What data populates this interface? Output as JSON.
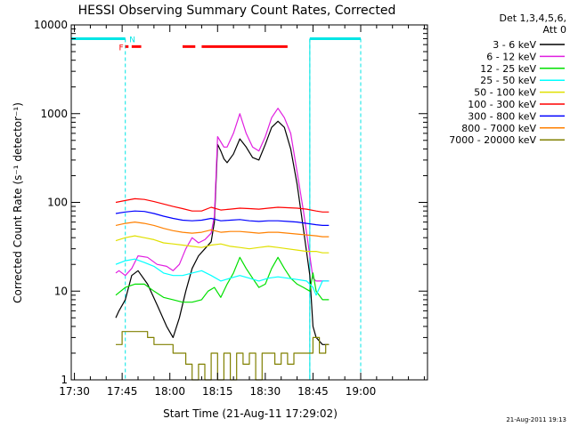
{
  "chart_data": {
    "type": "line",
    "title": "HESSI Observing Summary Count Rates, Corrected",
    "xlabel": "Start Time (21-Aug-11 17:29:02)",
    "ylabel": "Corrected Count Rate (s⁻¹ detector⁻¹)",
    "x_ticks": [
      "17:30",
      "17:45",
      "18:00",
      "18:15",
      "18:30",
      "18:45",
      "19:00"
    ],
    "x_tick_minutes": [
      30,
      45,
      60,
      75,
      90,
      105,
      120
    ],
    "xlim_minutes": [
      29,
      141
    ],
    "y_ticks": [
      "1",
      "10",
      "100",
      "1000",
      "10000"
    ],
    "ylim": [
      1,
      10000
    ],
    "y_scale": "log",
    "grid": false,
    "legend_position": "right-outside",
    "legend_header": [
      "Det 1,3,4,5,6,",
      "Att 0"
    ],
    "timestamp": "21-Aug-2011 19:13",
    "flag_labels": {
      "F": "F",
      "N": "N"
    },
    "bars": {
      "night_minutes": [
        [
          29,
          46
        ],
        [
          104,
          120
        ]
      ],
      "night_level": 7000,
      "night_dash_minutes": [
        46,
        104,
        120
      ],
      "night_solid_minutes": [
        29,
        104
      ],
      "flare_level": 5700,
      "flare_minutes": [
        [
          48,
          51
        ],
        [
          64,
          68
        ],
        [
          70,
          97
        ]
      ],
      "saa_level": 5700,
      "saa_minutes": [
        [
          46,
          47
        ]
      ]
    },
    "series": [
      {
        "name": "3 - 6 keV",
        "color": "#000000",
        "x": [
          43,
          44,
          46,
          48,
          50,
          53,
          56,
          59,
          61,
          63,
          65,
          67,
          69,
          71,
          73,
          74,
          75,
          76,
          77,
          78,
          80,
          82,
          84,
          86,
          88,
          90,
          92,
          94,
          96,
          98,
          100,
          102,
          104,
          105,
          106,
          108,
          110
        ],
        "y": [
          5,
          6,
          8,
          15,
          17,
          12,
          7,
          4,
          3,
          5,
          10,
          18,
          25,
          30,
          36,
          60,
          450,
          380,
          310,
          280,
          350,
          520,
          420,
          320,
          300,
          450,
          700,
          820,
          700,
          400,
          160,
          50,
          15,
          4,
          3,
          2.5,
          2.5
        ]
      },
      {
        "name": "6 - 12 keV",
        "color": "#e01fe0",
        "x": [
          43,
          44,
          46,
          48,
          50,
          53,
          56,
          59,
          61,
          63,
          65,
          67,
          69,
          71,
          73,
          74,
          75,
          76,
          77,
          78,
          80,
          82,
          84,
          86,
          88,
          90,
          92,
          94,
          96,
          98,
          100,
          102,
          104,
          105,
          106,
          108,
          110
        ],
        "y": [
          16,
          17,
          15,
          18,
          25,
          24,
          20,
          19,
          17,
          20,
          30,
          40,
          35,
          38,
          45,
          70,
          550,
          480,
          420,
          420,
          600,
          1000,
          600,
          420,
          380,
          550,
          900,
          1150,
          900,
          600,
          220,
          80,
          25,
          14,
          13,
          13,
          13
        ]
      },
      {
        "name": "12 - 25 keV",
        "color": "#00e000",
        "x": [
          43,
          46,
          49,
          52,
          55,
          58,
          61,
          64,
          67,
          70,
          72,
          74,
          76,
          78,
          80,
          82,
          84,
          86,
          88,
          90,
          92,
          94,
          96,
          98,
          100,
          102,
          104,
          105,
          106,
          108,
          110
        ],
        "y": [
          9,
          11,
          12,
          12,
          10,
          8.5,
          8,
          7.5,
          7.5,
          8,
          10,
          11,
          8.5,
          12,
          16,
          24,
          18,
          14,
          11,
          12,
          18,
          24,
          18,
          14,
          12,
          11,
          10,
          16,
          10,
          8,
          8
        ]
      },
      {
        "name": "25 - 50 keV",
        "color": "#00ffff",
        "x": [
          43,
          46,
          49,
          52,
          55,
          58,
          61,
          64,
          67,
          70,
          73,
          76,
          79,
          82,
          85,
          88,
          91,
          94,
          97,
          100,
          103,
          105,
          106,
          108,
          110
        ],
        "y": [
          20,
          22,
          23,
          21,
          19,
          16,
          15,
          15,
          16,
          17,
          15,
          13,
          14,
          15,
          14,
          13,
          14,
          14.5,
          14,
          13.5,
          13,
          11,
          9,
          13,
          13
        ]
      },
      {
        "name": "50 - 100 keV",
        "color": "#e0e000",
        "x": [
          43,
          46,
          49,
          52,
          55,
          58,
          61,
          64,
          67,
          70,
          73,
          76,
          79,
          82,
          85,
          88,
          91,
          94,
          97,
          100,
          103,
          106,
          108,
          110
        ],
        "y": [
          37,
          40,
          42,
          40,
          38,
          35,
          34,
          33,
          32,
          31,
          33,
          34,
          32,
          31,
          30,
          31,
          32,
          31,
          30,
          29,
          28,
          28,
          27,
          27
        ]
      },
      {
        "name": "100 - 300 keV",
        "color": "#ff0000",
        "x": [
          43,
          46,
          49,
          52,
          55,
          58,
          61,
          64,
          67,
          70,
          73,
          76,
          79,
          82,
          85,
          88,
          91,
          94,
          97,
          100,
          103,
          106,
          108,
          110
        ],
        "y": [
          100,
          105,
          110,
          108,
          102,
          96,
          90,
          85,
          80,
          80,
          88,
          82,
          84,
          86,
          85,
          84,
          86,
          88,
          87,
          86,
          84,
          80,
          78,
          78
        ]
      },
      {
        "name": "300 - 800 keV",
        "color": "#0000ff",
        "x": [
          43,
          46,
          49,
          52,
          55,
          58,
          61,
          64,
          67,
          70,
          73,
          76,
          79,
          82,
          85,
          88,
          91,
          94,
          97,
          100,
          103,
          106,
          108,
          110
        ],
        "y": [
          75,
          78,
          80,
          79,
          75,
          70,
          66,
          63,
          62,
          63,
          66,
          62,
          63,
          64,
          62,
          61,
          62,
          62,
          61,
          60,
          58,
          56,
          55,
          55
        ]
      },
      {
        "name": "800 - 7000 keV",
        "color": "#ff8000",
        "x": [
          43,
          46,
          49,
          52,
          55,
          58,
          61,
          64,
          67,
          70,
          73,
          76,
          79,
          82,
          85,
          88,
          91,
          94,
          97,
          100,
          103,
          106,
          108,
          110
        ],
        "y": [
          55,
          58,
          60,
          58,
          55,
          51,
          48,
          46,
          45,
          46,
          49,
          46,
          47,
          47,
          46,
          45,
          46,
          46,
          45,
          44,
          43,
          42,
          41,
          41
        ]
      },
      {
        "name": "7000 - 20000 keV",
        "color": "#808000",
        "x": [
          43,
          45,
          47,
          49,
          51,
          53,
          55,
          57,
          59,
          61,
          63,
          65,
          67,
          69,
          71,
          73,
          75,
          77,
          79,
          81,
          83,
          85,
          87,
          89,
          91,
          93,
          95,
          97,
          99,
          101,
          103,
          105,
          107,
          109,
          110
        ],
        "y": [
          2.5,
          3.5,
          3.5,
          3.5,
          3.5,
          3,
          2.5,
          2.5,
          2.5,
          2,
          2,
          1.5,
          1,
          1.5,
          1,
          2,
          1,
          2,
          1,
          2,
          1.5,
          2,
          1,
          2,
          2,
          1.5,
          2,
          1.5,
          2,
          2,
          2,
          3,
          2,
          2.5,
          2.5
        ]
      }
    ]
  }
}
